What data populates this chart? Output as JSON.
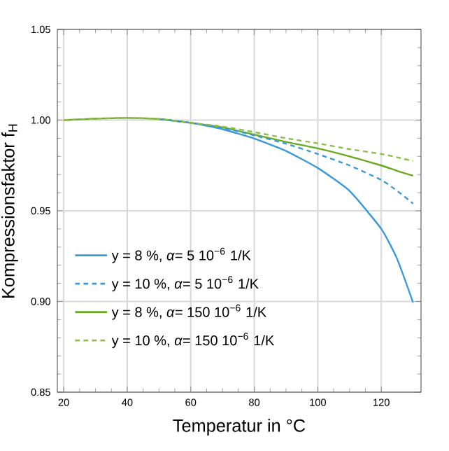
{
  "chart_data": {
    "type": "line",
    "xlabel": "Temperatur in °C",
    "ylabel": "Kompressionsfaktor f$_{H}$",
    "x": [
      20,
      30,
      40,
      50,
      60,
      70,
      80,
      90,
      100,
      110,
      120,
      125,
      130
    ],
    "series": [
      {
        "name": "y =   8 %, *α*=   5 10$^{−6}$ 1/K",
        "color": "#3a9ad9",
        "line_style": "solid",
        "values": [
          null,
          null,
          null,
          1.0006,
          0.9985,
          0.995,
          0.9898,
          0.983,
          0.9736,
          0.961,
          0.94,
          0.9234,
          0.8994
        ]
      },
      {
        "name": "y = 10 %, *α*=   5 10$^{−6}$ 1/K",
        "color": "#3a9ad9",
        "line_style": "dashed",
        "values": [
          null,
          null,
          null,
          1.0006,
          0.9985,
          0.9958,
          0.9916,
          0.987,
          0.9813,
          0.975,
          0.967,
          0.961,
          0.954
        ]
      },
      {
        "name": "y =   8 %, *α*= 150 10$^{−6}$ 1/K",
        "color": "#6aaa1e",
        "line_style": "solid",
        "values": [
          1.0,
          1.0008,
          1.0012,
          1.0006,
          0.9985,
          0.996,
          0.992,
          0.988,
          0.9844,
          0.98,
          0.975,
          0.972,
          0.9694
        ]
      },
      {
        "name": "y = 10 %, *α*= 150 10$^{−6}$ 1/K",
        "color": "#8cbf4a",
        "line_style": "dashed",
        "values": [
          1.0,
          1.0008,
          1.0012,
          1.0006,
          0.9985,
          0.9965,
          0.9934,
          0.99,
          0.9872,
          0.984,
          0.9813,
          0.9795,
          0.9774
        ]
      }
    ],
    "xlim": [
      18,
      132.5
    ],
    "ylim": [
      0.85,
      1.05
    ],
    "xticks": [
      20,
      40,
      60,
      80,
      100,
      120
    ],
    "yticks": [
      0.85,
      {
        "value": 0.9,
        "label": "0.90"
      },
      0.95,
      {
        "value": 1.0,
        "label": "1.00"
      },
      1.05
    ],
    "grid": true,
    "legend": "bottom left"
  }
}
